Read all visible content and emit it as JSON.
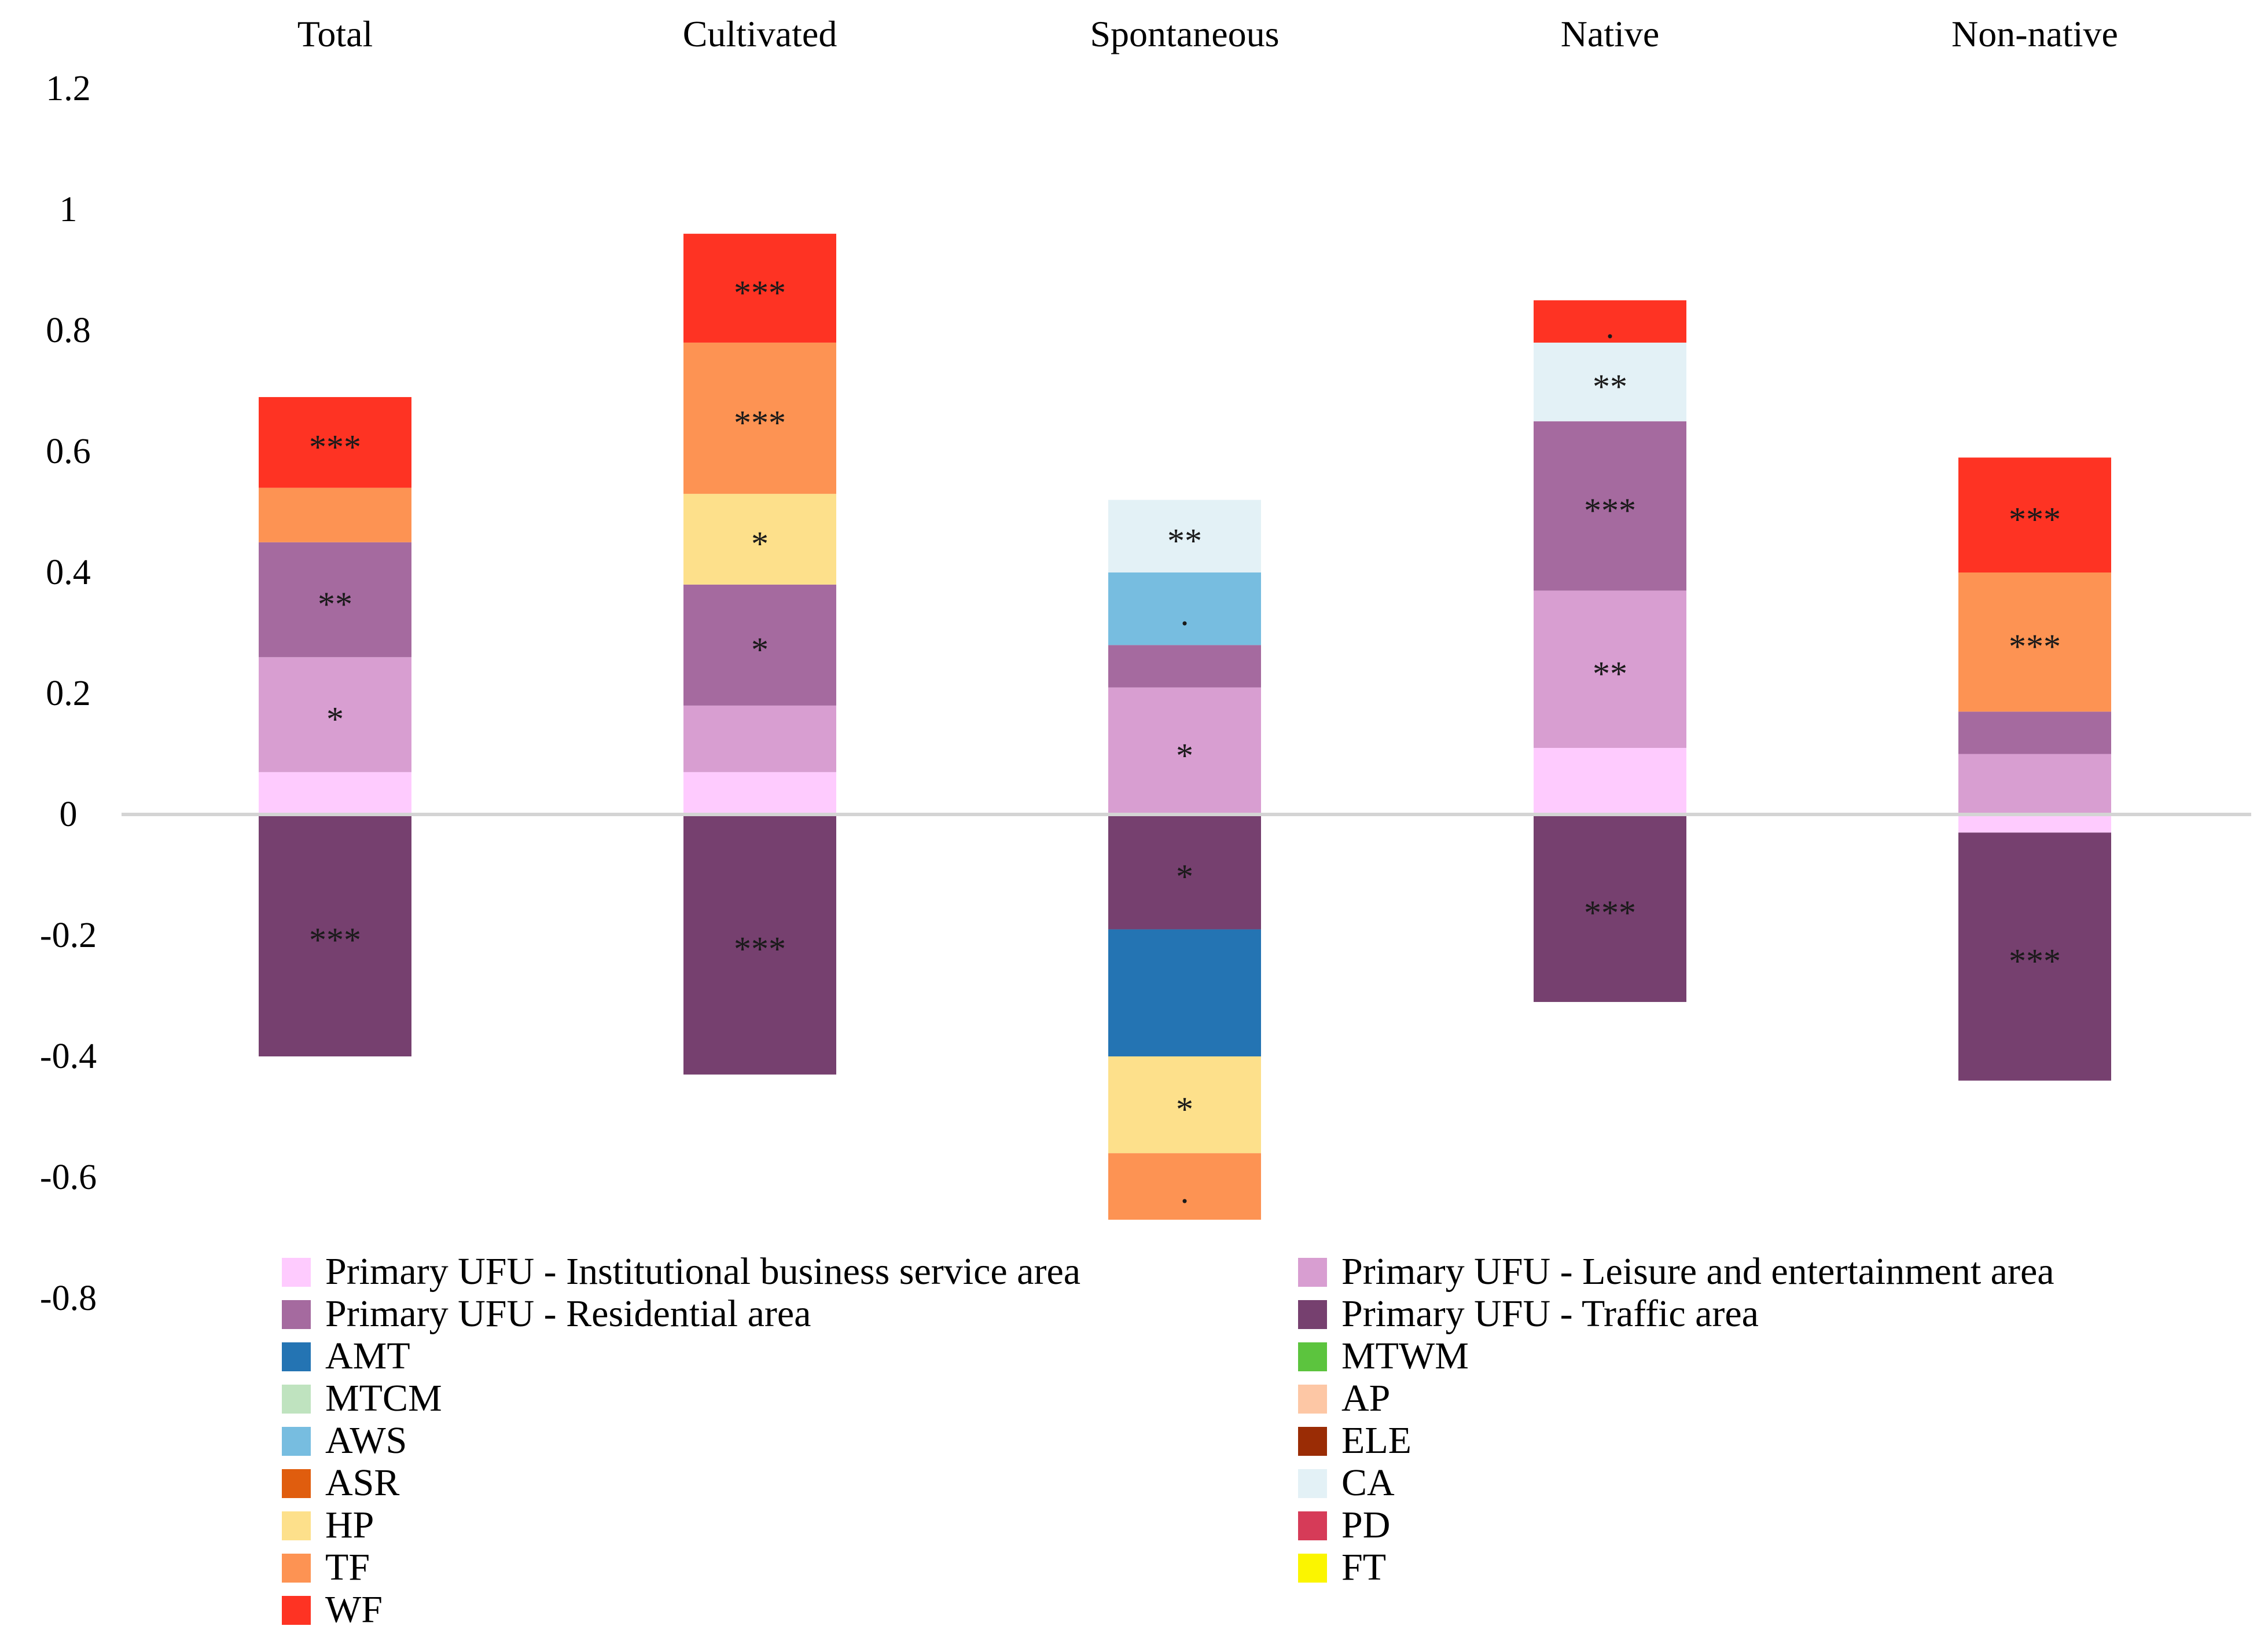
{
  "chart_data": {
    "type": "bar",
    "stacked": true,
    "title": "",
    "xlabel": "",
    "ylabel": "",
    "ylim": [
      -0.8,
      1.2
    ],
    "yticks": [
      "1.2",
      "1",
      "0.8",
      "0.6",
      "0.4",
      "0.2",
      "0",
      "-0.2",
      "-0.4",
      "-0.6",
      "-0.8"
    ],
    "ytick_values": [
      1.2,
      1,
      0.8,
      0.6,
      0.4,
      0.2,
      0,
      -0.2,
      -0.4,
      -0.6,
      -0.8
    ],
    "categories": [
      "Total",
      "Cultivated",
      "Spontaneous",
      "Native",
      "Non-native"
    ],
    "legend_position": "bottom",
    "legend": [
      {
        "key": "inst",
        "label": "Primary UFU - Institutional business service area",
        "color": "#FECBFE"
      },
      {
        "key": "leis",
        "label": "Primary UFU - Leisure and entertainment area",
        "color": "#D89ED1"
      },
      {
        "key": "res",
        "label": "Primary UFU - Residential area",
        "color": "#A56A9F"
      },
      {
        "key": "traffic",
        "label": "Primary UFU - Traffic area",
        "color": "#76406F"
      },
      {
        "key": "AMT",
        "label": "AMT",
        "color": "#2474B3"
      },
      {
        "key": "MTWM",
        "label": "MTWM",
        "color": "#5CC43E"
      },
      {
        "key": "MTCM",
        "label": "MTCM",
        "color": "#BFE3BF"
      },
      {
        "key": "AP",
        "label": "AP",
        "color": "#FDC7A5"
      },
      {
        "key": "AWS",
        "label": "AWS",
        "color": "#77BDE0"
      },
      {
        "key": "ELE",
        "label": "ELE",
        "color": "#9A2C05"
      },
      {
        "key": "ASR",
        "label": "ASR",
        "color": "#E05D0E"
      },
      {
        "key": "CA",
        "label": "CA",
        "color": "#E3F1F6"
      },
      {
        "key": "HP",
        "label": "HP",
        "color": "#FDE08B"
      },
      {
        "key": "PD",
        "label": "PD",
        "color": "#D63B58"
      },
      {
        "key": "TF",
        "label": "TF",
        "color": "#FD9353"
      },
      {
        "key": "FT",
        "label": "FT",
        "color": "#FBF500"
      },
      {
        "key": "WF",
        "label": "WF",
        "color": "#FE3323"
      }
    ],
    "stacks": [
      {
        "category": "Total",
        "positive": [
          {
            "series": "inst",
            "value": 0.07,
            "sig": ""
          },
          {
            "series": "leis",
            "value": 0.19,
            "sig": "*"
          },
          {
            "series": "res",
            "value": 0.19,
            "sig": "**"
          },
          {
            "series": "TF",
            "value": 0.09,
            "sig": ""
          },
          {
            "series": "WF",
            "value": 0.15,
            "sig": "***"
          }
        ],
        "negative": [
          {
            "series": "traffic",
            "value": -0.4,
            "sig": "***"
          }
        ]
      },
      {
        "category": "Cultivated",
        "positive": [
          {
            "series": "inst",
            "value": 0.07,
            "sig": ""
          },
          {
            "series": "leis",
            "value": 0.11,
            "sig": ""
          },
          {
            "series": "res",
            "value": 0.2,
            "sig": "*"
          },
          {
            "series": "HP",
            "value": 0.15,
            "sig": "*"
          },
          {
            "series": "TF",
            "value": 0.25,
            "sig": "***"
          },
          {
            "series": "WF",
            "value": 0.18,
            "sig": "***"
          }
        ],
        "negative": [
          {
            "series": "traffic",
            "value": -0.43,
            "sig": "***"
          }
        ]
      },
      {
        "category": "Spontaneous",
        "positive": [
          {
            "series": "leis",
            "value": 0.21,
            "sig": "*"
          },
          {
            "series": "res",
            "value": 0.07,
            "sig": ""
          },
          {
            "series": "AWS",
            "value": 0.12,
            "sig": "."
          },
          {
            "series": "CA",
            "value": 0.12,
            "sig": "**"
          }
        ],
        "negative": [
          {
            "series": "traffic",
            "value": -0.19,
            "sig": "*"
          },
          {
            "series": "AMT",
            "value": -0.21,
            "sig": ""
          },
          {
            "series": "HP",
            "value": -0.16,
            "sig": "*"
          },
          {
            "series": "TF",
            "value": -0.11,
            "sig": "."
          }
        ]
      },
      {
        "category": "Native",
        "positive": [
          {
            "series": "inst",
            "value": 0.11,
            "sig": ""
          },
          {
            "series": "leis",
            "value": 0.26,
            "sig": "**"
          },
          {
            "series": "res",
            "value": 0.28,
            "sig": "***"
          },
          {
            "series": "CA",
            "value": 0.13,
            "sig": "**"
          },
          {
            "series": "WF",
            "value": 0.07,
            "sig": "."
          }
        ],
        "negative": [
          {
            "series": "traffic",
            "value": -0.31,
            "sig": "***"
          }
        ]
      },
      {
        "category": "Non-native",
        "positive": [
          {
            "series": "leis",
            "value": 0.1,
            "sig": ""
          },
          {
            "series": "res",
            "value": 0.07,
            "sig": ""
          },
          {
            "series": "TF",
            "value": 0.23,
            "sig": "***"
          },
          {
            "series": "WF",
            "value": 0.19,
            "sig": "***"
          }
        ],
        "negative": [
          {
            "series": "inst",
            "value": -0.03,
            "sig": ""
          },
          {
            "series": "traffic",
            "value": -0.41,
            "sig": "***"
          }
        ]
      }
    ]
  }
}
